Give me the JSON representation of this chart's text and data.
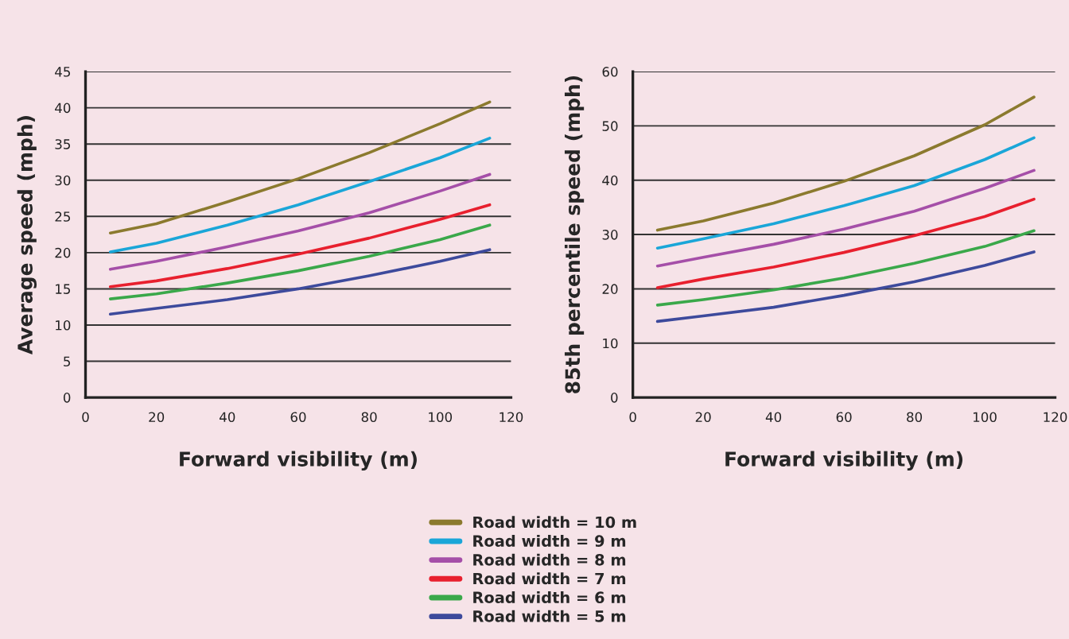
{
  "chart_data": [
    {
      "type": "line",
      "xlabel": "Forward visibility (m)",
      "ylabel": "Average speed (mph)",
      "xlim": [
        0,
        120
      ],
      "xticks": [
        0,
        20,
        40,
        60,
        80,
        100,
        120
      ],
      "ylim": [
        0,
        45
      ],
      "yticks": [
        0,
        5,
        10,
        15,
        20,
        25,
        30,
        35,
        40,
        45
      ],
      "grid": "y",
      "legend": "bottom",
      "line_style": "solid",
      "x": [
        7,
        20,
        40,
        60,
        80,
        100,
        114
      ],
      "series": [
        {
          "name": "Road width = 10 m",
          "color": "#8b7a2e",
          "values": [
            22.7,
            24,
            27,
            30.2,
            33.8,
            37.8,
            40.8
          ]
        },
        {
          "name": "Road width = 9 m",
          "color": "#1aa6d8",
          "values": [
            20.1,
            21.3,
            23.8,
            26.6,
            29.8,
            33.1,
            35.8
          ]
        },
        {
          "name": "Road width = 8 m",
          "color": "#a54fa8",
          "values": [
            17.7,
            18.8,
            20.8,
            23,
            25.5,
            28.5,
            30.8
          ]
        },
        {
          "name": "Road width = 7 m",
          "color": "#e8202e",
          "values": [
            15.3,
            16.1,
            17.8,
            19.8,
            22,
            24.6,
            26.6
          ]
        },
        {
          "name": "Road width = 6 m",
          "color": "#3aa84a",
          "values": [
            13.6,
            14.3,
            15.8,
            17.5,
            19.5,
            21.8,
            23.8
          ]
        },
        {
          "name": "Road width = 5 m",
          "color": "#3d4a9c",
          "values": [
            11.5,
            12.3,
            13.5,
            15,
            16.8,
            18.8,
            20.4
          ]
        }
      ]
    },
    {
      "type": "line",
      "xlabel": "Forward visibility (m)",
      "ylabel": "85th percentile speed (mph)",
      "xlim": [
        0,
        120
      ],
      "xticks": [
        0,
        20,
        40,
        60,
        80,
        100,
        120
      ],
      "ylim": [
        0,
        60
      ],
      "yticks": [
        0,
        10,
        20,
        30,
        40,
        50,
        60
      ],
      "grid": "y",
      "line_style": "solid",
      "x": [
        7,
        20,
        40,
        60,
        80,
        100,
        114
      ],
      "series": [
        {
          "color": "#8b7a2e",
          "values": [
            30.8,
            32.5,
            35.8,
            39.8,
            44.5,
            50.2,
            55.3
          ]
        },
        {
          "color": "#1aa6d8",
          "values": [
            27.5,
            29.2,
            32,
            35.3,
            39,
            43.8,
            47.8
          ]
        },
        {
          "color": "#a54fa8",
          "values": [
            24.2,
            25.8,
            28.2,
            31,
            34.3,
            38.5,
            41.8
          ]
        },
        {
          "color": "#e8202e",
          "values": [
            20.2,
            21.8,
            24,
            26.7,
            29.8,
            33.3,
            36.5
          ]
        },
        {
          "color": "#3aa84a",
          "values": [
            17,
            18,
            19.8,
            22,
            24.7,
            27.8,
            30.7
          ]
        },
        {
          "color": "#3d4a9c",
          "values": [
            14,
            15,
            16.6,
            18.8,
            21.3,
            24.3,
            26.8
          ]
        }
      ]
    }
  ]
}
